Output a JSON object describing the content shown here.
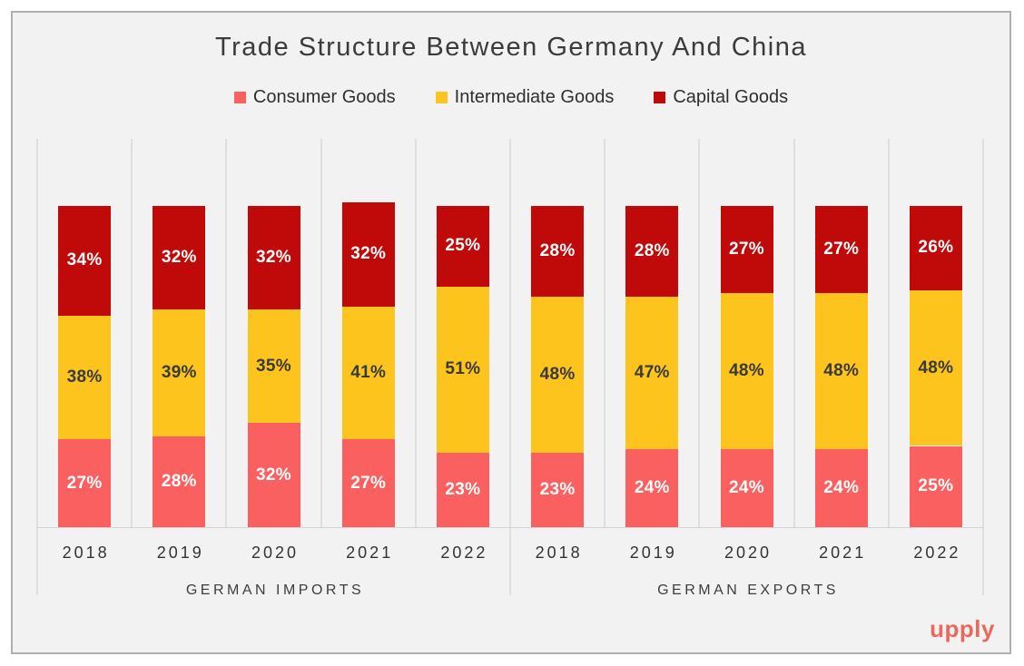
{
  "title": "Trade Structure Between Germany And China",
  "watermark": "upply",
  "colors": {
    "background": "#f2f2f2",
    "panel_border": "#b0b0b0",
    "gridline": "#dedede",
    "watermark": "#ea685c"
  },
  "legend": {
    "items": [
      {
        "label": "Consumer Goods",
        "color": "#fb6060"
      },
      {
        "label": "Intermediate Goods",
        "color": "#fcc41d"
      },
      {
        "label": "Capital Goods",
        "color": "#c00909"
      }
    ]
  },
  "chart_data": {
    "type": "bar",
    "stacked": true,
    "value_suffix": "%",
    "ylim": [
      0,
      100
    ],
    "grid": "vertical column separators, no y-axis ticks",
    "legend_position": "top-center",
    "series_colors": {
      "Consumer Goods": "#fb6060",
      "Intermediate Goods": "#fcc41d",
      "Capital Goods": "#c00909"
    },
    "label_text_colors": {
      "Consumer Goods": "#ffffff",
      "Intermediate Goods": "#3a3a3a",
      "Capital Goods": "#ffffff"
    },
    "groups": [
      {
        "label": "GERMAN IMPORTS",
        "categories": [
          "2018",
          "2019",
          "2020",
          "2021",
          "2022"
        ],
        "series": [
          {
            "name": "Consumer Goods",
            "values": [
              27,
              28,
              32,
              27,
              23
            ]
          },
          {
            "name": "Intermediate Goods",
            "values": [
              38,
              39,
              35,
              41,
              51
            ]
          },
          {
            "name": "Capital Goods",
            "values": [
              34,
              32,
              32,
              32,
              25
            ]
          }
        ]
      },
      {
        "label": "GERMAN EXPORTS",
        "categories": [
          "2018",
          "2019",
          "2020",
          "2021",
          "2022"
        ],
        "series": [
          {
            "name": "Consumer Goods",
            "values": [
              23,
              24,
              24,
              24,
              25
            ]
          },
          {
            "name": "Intermediate Goods",
            "values": [
              48,
              47,
              48,
              48,
              48
            ]
          },
          {
            "name": "Capital Goods",
            "values": [
              28,
              28,
              27,
              27,
              26
            ]
          }
        ]
      }
    ]
  }
}
